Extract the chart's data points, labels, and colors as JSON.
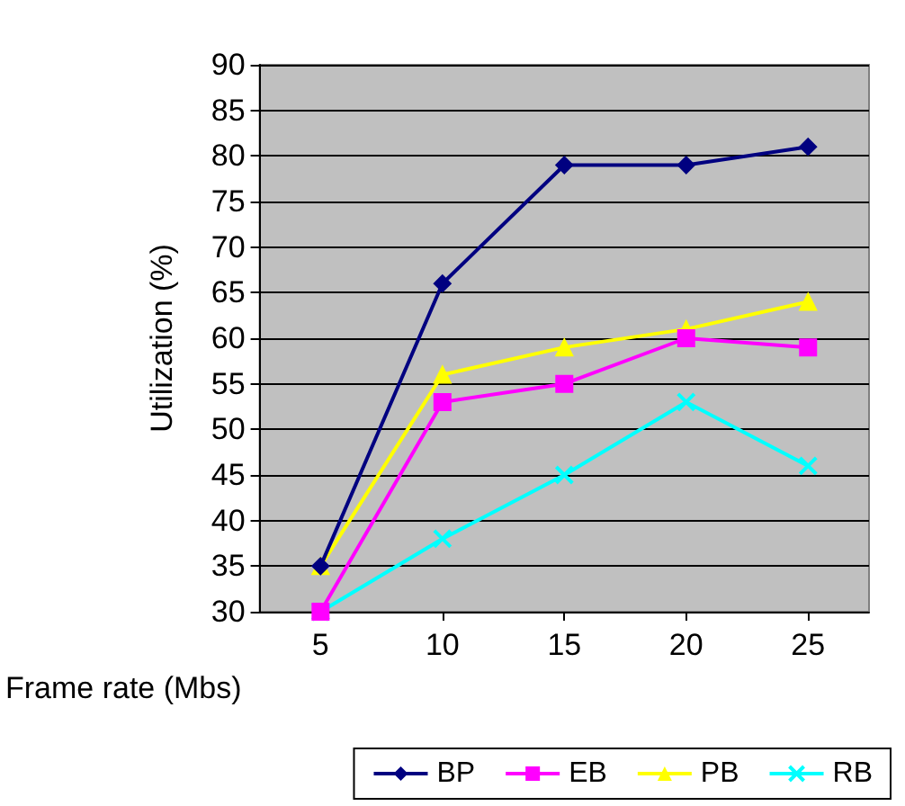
{
  "chart_data": {
    "type": "line",
    "xlabel": "Frame rate (Mbs)",
    "ylabel": "Utilization (%)",
    "categories": [
      "5",
      "10",
      "15",
      "20",
      "25"
    ],
    "ylim": [
      30,
      90
    ],
    "yticks": [
      30,
      35,
      40,
      45,
      50,
      55,
      60,
      65,
      70,
      75,
      80,
      85,
      90
    ],
    "grid": "y",
    "legend": "bottom",
    "series": [
      {
        "name": "BP",
        "color": "#000080",
        "marker": "diamond",
        "values": [
          35,
          66,
          79,
          79,
          81
        ]
      },
      {
        "name": "EB",
        "color": "#ff00ff",
        "marker": "square",
        "values": [
          30,
          53,
          55,
          60,
          59
        ]
      },
      {
        "name": "PB",
        "color": "#ffff00",
        "marker": "triangle",
        "values": [
          35,
          56,
          59,
          61,
          64
        ]
      },
      {
        "name": "RB",
        "color": "#00ffff",
        "marker": "cross",
        "values": [
          30,
          38,
          45,
          53,
          46
        ]
      }
    ]
  }
}
